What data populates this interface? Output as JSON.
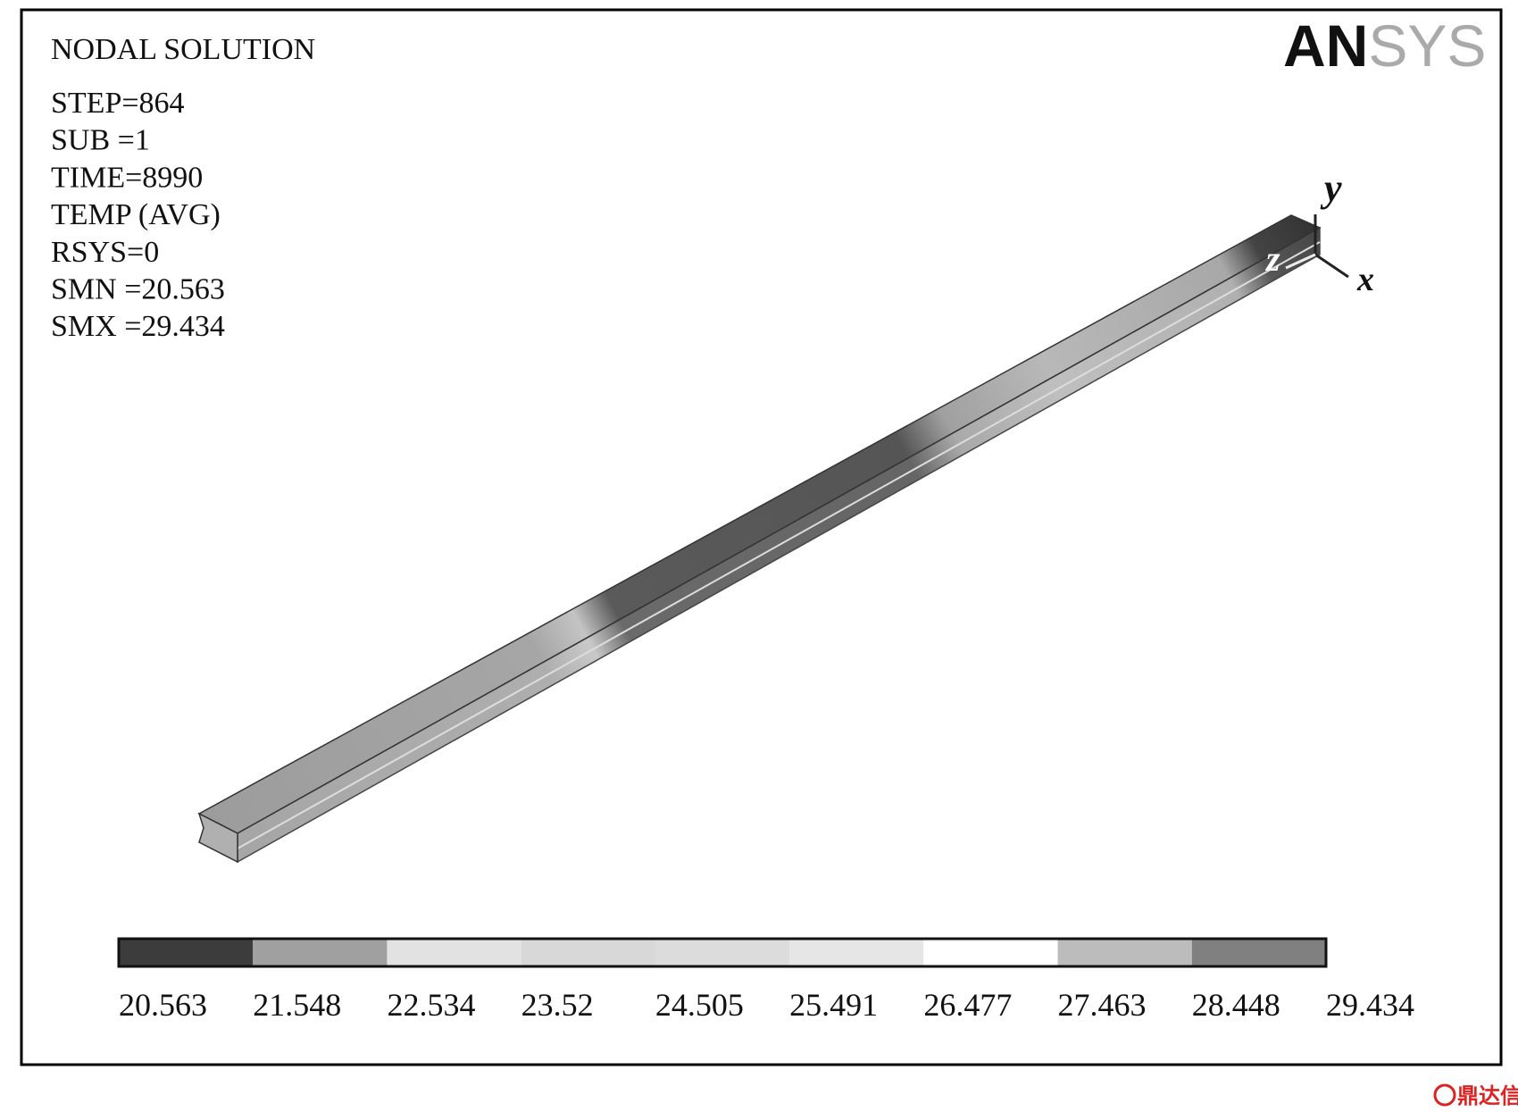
{
  "header": {
    "title": "NODAL  SOLUTION",
    "lines": [
      "STEP=864",
      "SUB  =1",
      "TIME=8990",
      "TEMP    (AVG)",
      "RSYS=0",
      "SMN  =20.563",
      "SMX  =29.434"
    ]
  },
  "logo": {
    "bold": "AN",
    "light": "SYS"
  },
  "axes": {
    "y": "y",
    "z": "z",
    "x": "x"
  },
  "legend": {
    "colors": [
      "#3c3c3c",
      "#a0a0a0",
      "#e2e2e2",
      "#d8d8d8",
      "#dcdcdc",
      "#e6e6e6",
      "#ffffff",
      "#bcbcbc",
      "#808080"
    ],
    "labels": [
      "20.563",
      "21.548",
      "22.534",
      "23.52",
      "24.505",
      "25.491",
      "26.477",
      "27.463",
      "28.448",
      "29.434"
    ]
  },
  "watermark": "鼎达信"
}
